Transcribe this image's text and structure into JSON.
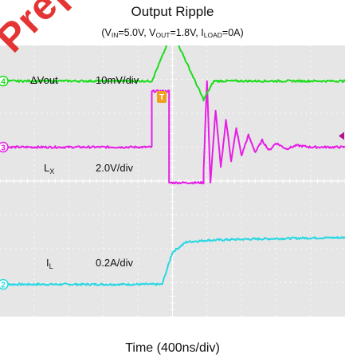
{
  "chart_data": {
    "type": "line",
    "title": "Output Ripple",
    "subtitle_parts": [
      "(V",
      "IN",
      "=5.0V, V",
      "OUT",
      "=1.8V, I",
      "LOAD",
      "=0A)"
    ],
    "xlabel": "Time (400ns/div)",
    "x_divisions": 10,
    "y_divisions": 8,
    "grid": true,
    "channels": [
      {
        "id": "2",
        "name": "ΔVout",
        "name_sub": "",
        "scale": "10mV/div",
        "color": "#28d7e3",
        "points": [
          [
            0,
            0.95
          ],
          [
            4.7,
            0.95
          ],
          [
            5.0,
            1.9
          ],
          [
            5.4,
            2.2
          ],
          [
            6.0,
            2.25
          ],
          [
            7.0,
            2.28
          ],
          [
            8.0,
            2.3
          ],
          [
            9.0,
            2.32
          ],
          [
            10,
            2.33
          ]
        ]
      },
      {
        "id": "3",
        "name": "L",
        "name_sub": "X",
        "scale": "2.0V/div",
        "color": "#e61ee6",
        "points": [
          [
            0,
            5.0
          ],
          [
            4.4,
            5.0
          ],
          [
            4.4,
            6.65
          ],
          [
            4.9,
            6.65
          ],
          [
            4.9,
            3.95
          ],
          [
            5.9,
            3.95
          ],
          [
            5.9,
            4.3
          ],
          [
            6.0,
            6.95
          ],
          [
            6.1,
            3.95
          ],
          [
            6.25,
            6.1
          ],
          [
            6.4,
            4.4
          ],
          [
            6.55,
            5.8
          ],
          [
            6.7,
            4.6
          ],
          [
            6.85,
            5.55
          ],
          [
            7.0,
            4.75
          ],
          [
            7.2,
            5.35
          ],
          [
            7.4,
            4.85
          ],
          [
            7.6,
            5.2
          ],
          [
            7.8,
            4.9
          ],
          [
            8.0,
            5.12
          ],
          [
            8.3,
            4.95
          ],
          [
            8.6,
            5.05
          ],
          [
            9.0,
            5.0
          ],
          [
            10,
            5.0
          ]
        ]
      },
      {
        "id": "4",
        "name": "I",
        "name_sub": "L",
        "scale": "0.2A/div",
        "color": "#1ddc1d",
        "points": [
          [
            0,
            6.95
          ],
          [
            4.4,
            6.95
          ],
          [
            5.0,
            8.4
          ],
          [
            5.9,
            6.4
          ],
          [
            6.2,
            6.95
          ],
          [
            10,
            6.95
          ]
        ]
      }
    ]
  },
  "watermark": "Prepared for"
}
